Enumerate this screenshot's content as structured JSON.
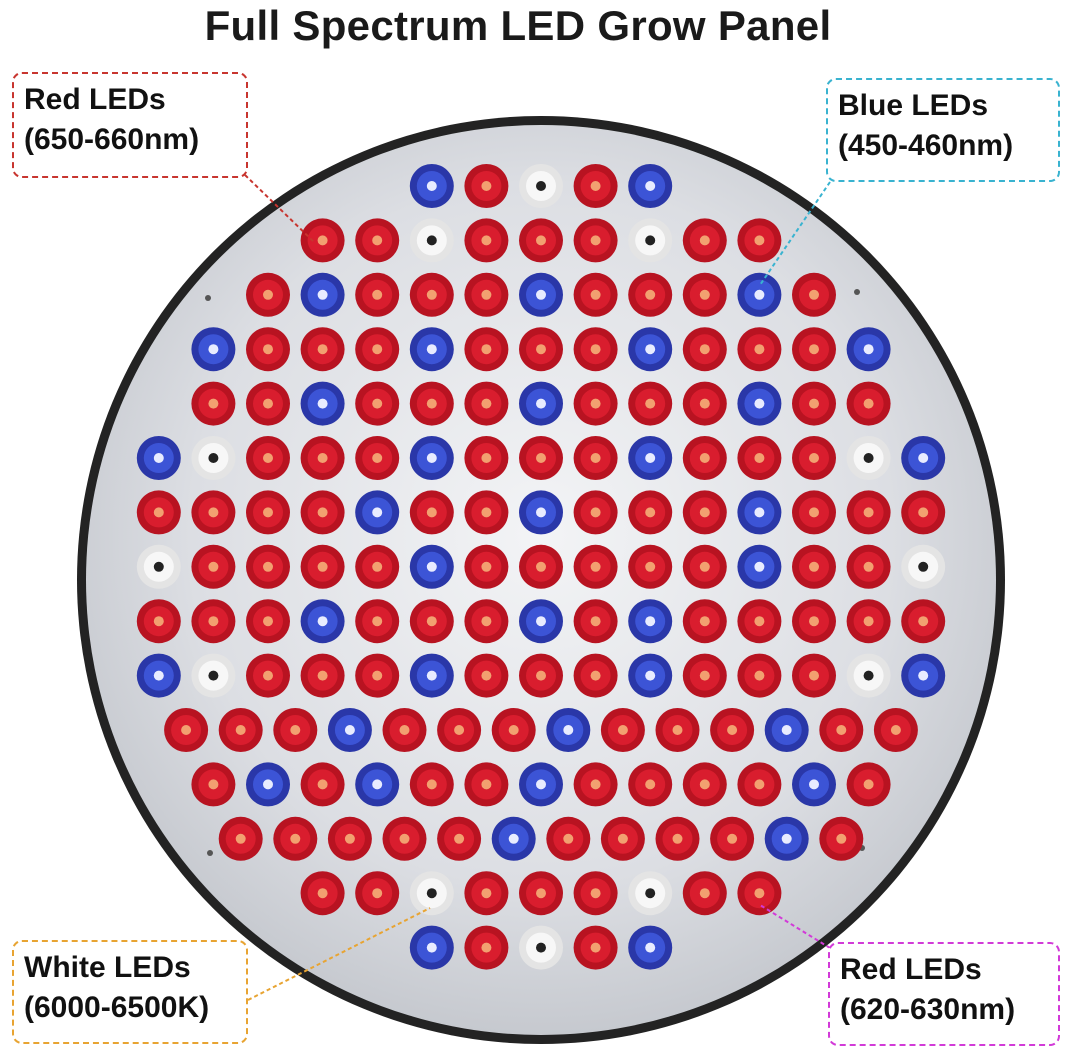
{
  "title": "Full Spectrum LED Grow Panel",
  "callouts": {
    "red_660": {
      "line1": "Red LEDs",
      "line2": "(650-660nm)",
      "color": "#c8352f"
    },
    "blue_460": {
      "line1": "Blue LEDs",
      "line2": "(450-460nm)",
      "color": "#39b3d0"
    },
    "white": {
      "line1": "White LEDs",
      "line2": "(6000-6500K)",
      "color": "#e8a432"
    },
    "red_630": {
      "line1": "Red LEDs",
      "line2": "(620-630nm)",
      "color": "#d23ad8"
    }
  },
  "panel": {
    "rim_color": "#232323",
    "plate_color": "#dfe1e6"
  },
  "led_grid": {
    "legend": {
      "R": "red",
      "B": "blue",
      "W": "white"
    },
    "rows": [
      "....BRWRB....",
      "..RRWRRRWRR..",
      ".RBRRRBRRRBR.",
      "BRRRBRRRBRRRB",
      "RRBRRRBRRRBRR",
      "BWRRRBRRRBRRRWB",
      "RRRRBRRBRRRBRRR",
      "WRRRRBRRRRRBRRW",
      "RRRBRRRBRBRRRRR",
      "BWRRRBRRRBRRRWB",
      "RRRBRRRBRRRBRR",
      "RBRBRRBRRRRBR",
      ".RRRRRBRRRRBR.",
      "..RRWRRRWRR..",
      "....BRWRB...."
    ]
  },
  "led_colors": {
    "red_outer": "#b81321",
    "red_inner": "#d91d2e",
    "blue_outer": "#2a37a8",
    "blue_inner": "#3c54d6",
    "white_outer": "#e4e4e4",
    "white_inner": "#f7f7f7"
  }
}
